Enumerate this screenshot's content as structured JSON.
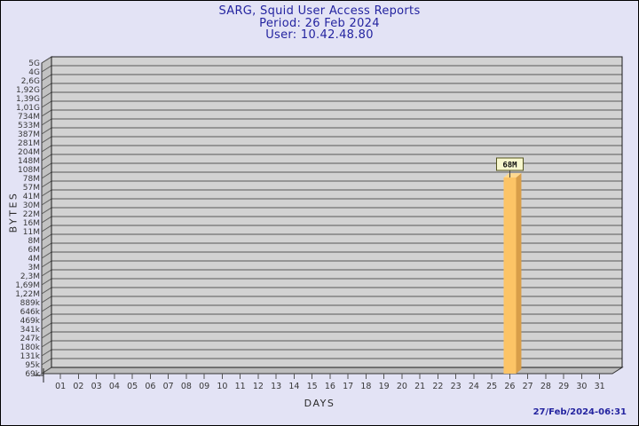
{
  "chart_data": {
    "type": "bar",
    "title": "SARG, Squid User Access Reports",
    "period_line": "Period: 26 Feb 2024",
    "user_line": "User: 10.42.48.80",
    "xlabel": "DAYS",
    "ylabel": "BYTES",
    "y_scale": "log",
    "grid": true,
    "y_tick_labels": [
      "5G",
      "4G",
      "2,6G",
      "1,92G",
      "1,39G",
      "1,01G",
      "734M",
      "533M",
      "387M",
      "281M",
      "204M",
      "148M",
      "108M",
      "78M",
      "57M",
      "41M",
      "30M",
      "22M",
      "16M",
      "11M",
      "8M",
      "6M",
      "4M",
      "3M",
      "2,3M",
      "1,69M",
      "1,22M",
      "889k",
      "646k",
      "469k",
      "341k",
      "247k",
      "180k",
      "131k",
      "95k",
      "69k"
    ],
    "x_categories": [
      "01",
      "02",
      "03",
      "04",
      "05",
      "06",
      "07",
      "08",
      "09",
      "10",
      "11",
      "12",
      "13",
      "14",
      "15",
      "16",
      "17",
      "18",
      "19",
      "20",
      "21",
      "22",
      "23",
      "24",
      "25",
      "26",
      "27",
      "28",
      "29",
      "30",
      "31"
    ],
    "bars": [
      {
        "day": "26",
        "value_label": "68M"
      }
    ],
    "footer_timestamp": "27/Feb/2024-06:31",
    "layout": {
      "bar_top_frac": 0.389
    },
    "colors": {
      "background": "#e3e3f5",
      "plot_bg": "#d2d2d2",
      "grid": "#585858",
      "wall": "#c2c2c2",
      "floor": "#bdbdbd",
      "frame": "#1a1a1a",
      "title_text": "#2424a0",
      "axis_text": "#383838",
      "bar_front": "#fcc466",
      "bar_side": "#d89e49",
      "bar_top": "#ffd98f",
      "value_box_bg": "#f7f7ce",
      "value_box_border": "#55551f"
    }
  }
}
